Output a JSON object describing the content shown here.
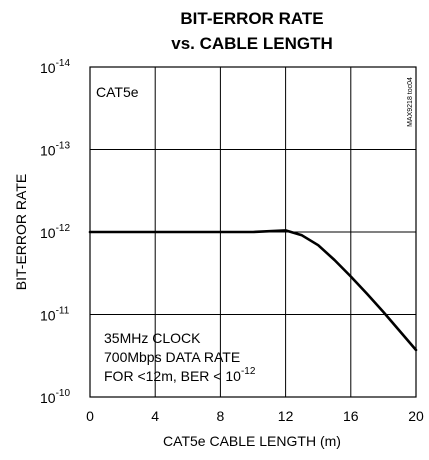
{
  "chart_data": {
    "type": "line",
    "title_line1": "BIT-ERROR RATE",
    "title_line2": "vs. CABLE LENGTH",
    "xlabel": "CAT5e CABLE LENGTH (m)",
    "ylabel": "BIT-ERROR RATE",
    "xlim": [
      0,
      20
    ],
    "x_ticks": [
      "0",
      "4",
      "8",
      "12",
      "16",
      "20"
    ],
    "y_scale": "log",
    "y_ticks": [
      {
        "base": "10",
        "exp": "-14"
      },
      {
        "base": "10",
        "exp": "-13"
      },
      {
        "base": "10",
        "exp": "-12"
      },
      {
        "base": "10",
        "exp": "-11"
      },
      {
        "base": "10",
        "exp": "-10"
      }
    ],
    "grid": true,
    "legend_label": "CAT5e",
    "side_label": "MAX9218 toc04",
    "annotation": {
      "line1": "35MHz CLOCK",
      "line2": "700Mbps DATA RATE",
      "line3_prefix": "FOR <12m, BER < 10",
      "line3_exp": "-12"
    },
    "series": [
      {
        "x": [
          0,
          10,
          11,
          12,
          13,
          14,
          15,
          16,
          17,
          18,
          19,
          20
        ],
        "exp": [
          -12,
          -12,
          -12.01,
          -12.02,
          -11.96,
          -11.84,
          -11.66,
          -11.46,
          -11.25,
          -11.03,
          -10.8,
          -10.57
        ]
      }
    ]
  }
}
